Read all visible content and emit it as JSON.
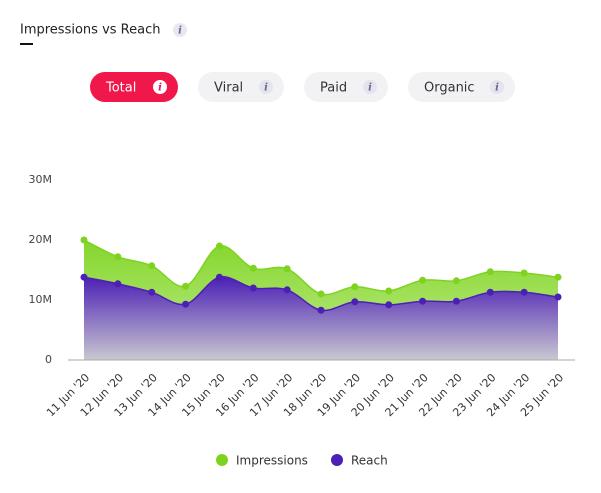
{
  "header": {
    "title": "Impressions vs Reach"
  },
  "info_icon": "i",
  "tabs": [
    "Total",
    "Viral",
    "Paid",
    "Organic"
  ],
  "active_tab": 0,
  "chart_data": {
    "type": "area",
    "categories": [
      "11 Jun '20",
      "12 Jun '20",
      "13 Jun '20",
      "14 Jun '20",
      "15 Jun '20",
      "16 Jun '20",
      "17 Jun '20",
      "18 Jun '20",
      "19 Jun '20",
      "20 Jun '20",
      "21 Jun '20",
      "22 Jun '20",
      "23 Jun '20",
      "24 Jun '20",
      "25 Jun '20"
    ],
    "series": [
      {
        "name": "Impressions",
        "color": "#7ed321",
        "values": [
          20,
          17.2,
          15.7,
          12.3,
          19,
          15.3,
          15.2,
          11,
          12.2,
          11.5,
          13.3,
          13.2,
          14.7,
          14.5,
          13.8
        ]
      },
      {
        "name": "Reach",
        "color": "#4c1fb5",
        "values": [
          13.8,
          12.7,
          11.3,
          9.3,
          13.8,
          12,
          11.7,
          8.3,
          9.7,
          9.2,
          9.8,
          9.8,
          11.3,
          11.3,
          10.5
        ]
      }
    ],
    "ylim": [
      0,
      30
    ],
    "yticks": [
      0,
      {
        "value": 10,
        "label": "10M"
      },
      {
        "value": 20,
        "label": "20M"
      },
      {
        "value": 30,
        "label": "30M"
      }
    ],
    "grid": false,
    "legend": "bottom"
  }
}
